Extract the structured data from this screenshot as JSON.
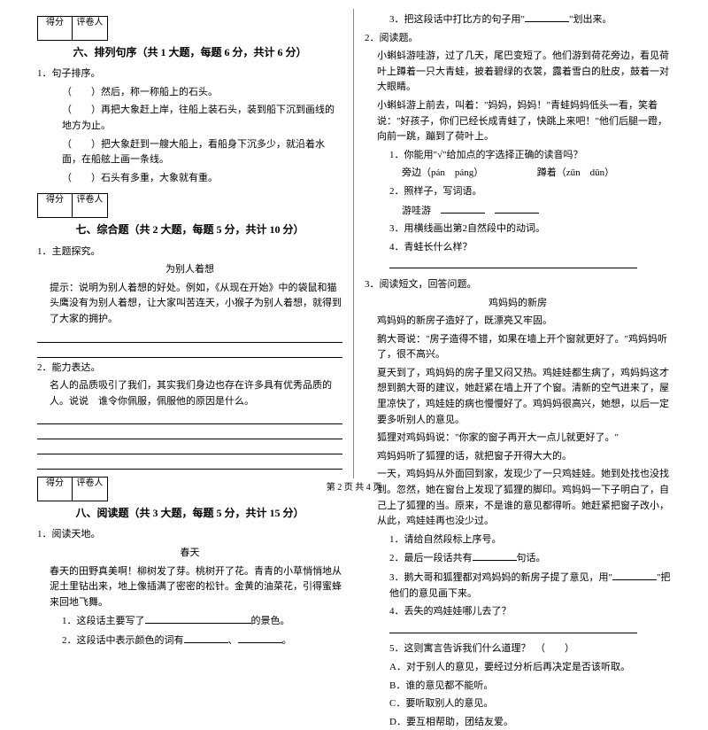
{
  "scorebox": {
    "label1": "得分",
    "label2": "评卷人"
  },
  "sections": {
    "s6": "六、排列句序（共 1 大题，每题 6 分，共计 6 分）",
    "s7": "七、综合题（共 2 大题，每题 5 分，共计 10 分）",
    "s8": "八、阅读题（共 3 大题，每题 5 分，共计 15 分）"
  },
  "q1": {
    "stem": "1．句子排序。",
    "a": "（　　）然后，称一称船上的石头。",
    "b": "（　　）再把大象赶上岸，往船上装石头，装到船下沉到画线的地方为止。",
    "c": "（　　）把大象赶到一艘大船上，看船身下沉多少，就沿着水面，在船舷上画一条线。",
    "d": "（　　）石头有多重，大象就有重。"
  },
  "q2": {
    "num": "1．主题探究。",
    "title": "为别人着想",
    "hint": "提示：说明为别人着想的好处。例如，《从现在开始》中的袋鼠和猫头鹰没有为别人着想，让大家叫苦连天，小猴子为别人着想，就得到了大家的拥护。"
  },
  "q3": {
    "num": "2．能力表达。",
    "text": "名人的品质吸引了我们，其实我们身边也存在许多具有优秀品质的人。说说　谁令你佩服，佩服他的原因是什么。"
  },
  "q4": {
    "num": "1．阅读天地。",
    "title": "春天",
    "para": "春天的田野真美啊！柳树发了芽。桃树开了花。青青的小草悄悄地从泥土里钻出来，地上像插满了密密的松针。金黄的油菜花，引得蜜蜂来回地飞舞。",
    "sub1_a": "1．这段话主要写了",
    "sub1_b": "的景色。",
    "sub2_a": "2．这段话中表示颜色的词有",
    "sub2_b": "、",
    "sub2_c": "。"
  },
  "q5": {
    "sub3_a": "3．把这段话中打比方的句子用\"",
    "sub3_b": "\"划出来。"
  },
  "q6": {
    "num": "2．阅读题。",
    "p1": "小蝌蚪游哇游，过了几天，尾巴变短了。他们游到荷花旁边，看见荷叶上蹲着一只大青蛙，披着碧绿的衣裳，露着雪白的肚皮，鼓着一对大眼睛。",
    "p2": "小蝌蚪游上前去，叫着：\"妈妈，妈妈！\"青蛙妈妈低头一看，笑着说：\"好孩子，你们已经长成青蛙了，快跳上来吧！\"他们后腿一蹬，向前一跳，蹦到了荷叶上。",
    "s1": "1．你能用\"√\"给加点的字选择正确的读音吗？",
    "s1a": "旁边（pán　páng）　　　　　　蹲着（zūn　dūn）",
    "s2": "2．照样子，写词语。",
    "s2a": "游哇游",
    "s3": "3．用横线画出第2自然段中的动词。",
    "s4": "4．青蛙长什么样？"
  },
  "q7": {
    "num": "3．阅读短文，回答问题。",
    "title": "鸡妈妈的新房",
    "p1": "鸡妈妈的新房子造好了，既漂亮又牢固。",
    "p2": "鹅大哥说：\"房子造得不错，如果在墙上开个窗就更好了。\"鸡妈妈听了，很不高兴。",
    "p3": "夏天到了，鸡妈妈的房子里又闷又热。鸡娃娃都生病了，鸡妈妈这才想到鹅大哥的建议，她赶紧在墙上开了个窗。清新的空气进来了，屋里凉快了，鸡娃娃的病也慢慢好了。鸡妈妈很高兴，她想，以后一定要多听别人的意见。",
    "p4": "狐狸对鸡妈妈说：\"你家的窗子再开大一点儿就更好了。\"",
    "p5": "鸡妈妈听了狐狸的话，就把窗子开得大大的。",
    "p6": "一天，鸡妈妈从外面回到家，发现少了一只鸡娃娃。她到处找也没找到。忽然，她在窗台上发现了狐狸的脚印。鸡妈妈一下子明白了，自己上了狐狸的当。原来，不是谁的意见都得听。她赶紧把窗子改小，从此，鸡娃娃再也没少过。",
    "s1": "1．请给自然段标上序号。",
    "s2a": "2．最后一段话共有",
    "s2b": "句话。",
    "s3a": "3．鹅大哥和狐狸都对鸡妈妈的新房子提了意见，用\"",
    "s3b": "\"把他们的意见画下来。",
    "s4": "4．丢失的鸡娃娃哪儿去了？",
    "s5": "5．这则寓言告诉我们什么道理？　（　　）",
    "s5a": "A．对于别人的意见，要经过分析后再决定是否该听取。",
    "s5b": "B．谁的意见都不能听。",
    "s5c": "C．要听取别人的意见。",
    "s5d": "D．要互相帮助，团结友爱。"
  },
  "footer": "第 2 页 共 4 页"
}
